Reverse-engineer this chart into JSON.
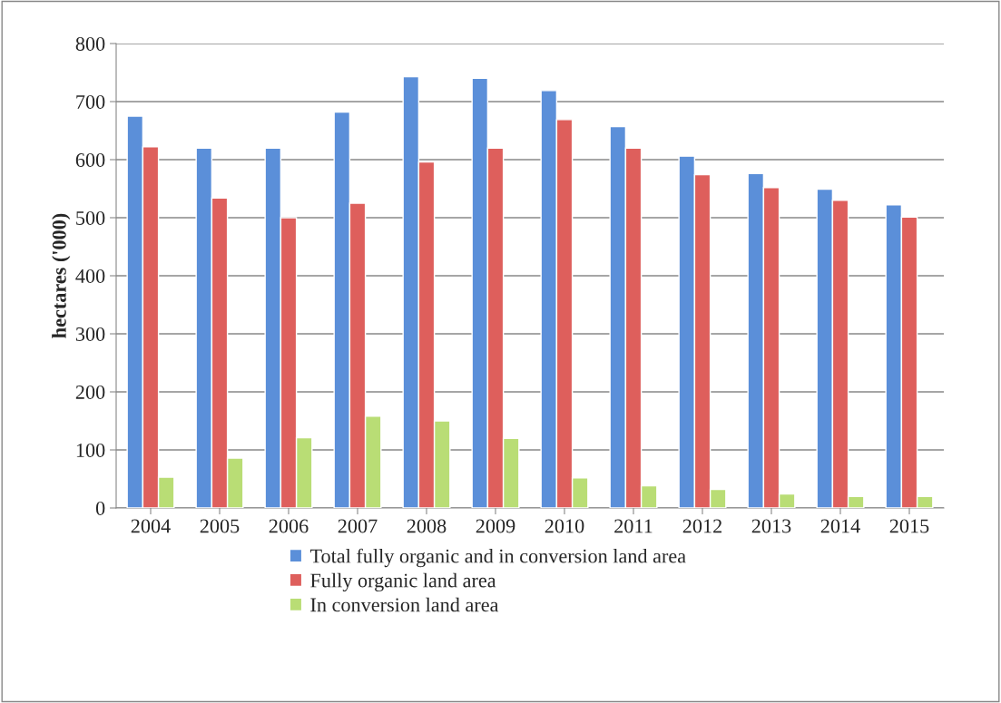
{
  "chart_data": {
    "type": "bar",
    "ylabel": "hectares ('000)",
    "categories": [
      "2004",
      "2005",
      "2006",
      "2007",
      "2008",
      "2009",
      "2010",
      "2011",
      "2012",
      "2013",
      "2014",
      "2015"
    ],
    "series": [
      {
        "name": "Total fully organic and in conversion land area",
        "color": "#5b8fd9",
        "values": [
          675,
          620,
          620,
          682,
          743,
          740,
          719,
          657,
          606,
          576,
          549,
          522
        ]
      },
      {
        "name": "Fully organic land area",
        "color": "#de5f5c",
        "values": [
          622,
          534,
          500,
          525,
          596,
          620,
          669,
          620,
          574,
          552,
          530,
          501
        ]
      },
      {
        "name": "In conversion land area",
        "color": "#b9dd75",
        "values": [
          53,
          86,
          121,
          158,
          150,
          120,
          52,
          38,
          32,
          24,
          20,
          20
        ]
      }
    ],
    "ylim": [
      0,
      800
    ],
    "yticks": [
      0,
      100,
      200,
      300,
      400,
      500,
      600,
      700,
      800
    ],
    "grid": "y",
    "legend": "bottom"
  }
}
